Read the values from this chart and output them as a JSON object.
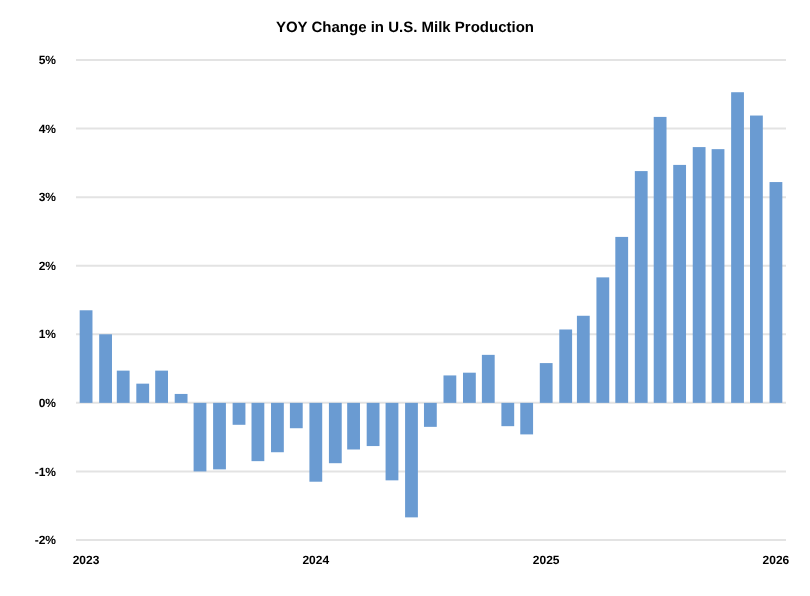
{
  "chart_data": {
    "type": "bar",
    "title": "YOY Change in U.S. Milk Production",
    "x": [
      "2023-01",
      "2023-02",
      "2023-03",
      "2023-04",
      "2023-05",
      "2023-06",
      "2023-07",
      "2023-08",
      "2023-09",
      "2023-10",
      "2023-11",
      "2023-12",
      "2024-01",
      "2024-02",
      "2024-03",
      "2024-04",
      "2024-05",
      "2024-06",
      "2024-07",
      "2024-08",
      "2024-09",
      "2024-10",
      "2024-11",
      "2024-12",
      "2025-01",
      "2025-02",
      "2025-03",
      "2025-04",
      "2025-05",
      "2025-06",
      "2025-07",
      "2025-08",
      "2025-09",
      "2025-10",
      "2025-11",
      "2025-12",
      "2026-01"
    ],
    "values": [
      1.35,
      1.0,
      0.47,
      0.28,
      0.47,
      0.13,
      -1.0,
      -0.97,
      -0.32,
      -0.85,
      -0.72,
      -0.37,
      -1.15,
      -0.88,
      -0.68,
      -0.63,
      -1.13,
      -1.67,
      -0.35,
      0.4,
      0.44,
      0.7,
      -0.34,
      -0.46,
      0.58,
      1.07,
      1.27,
      1.83,
      2.42,
      3.38,
      4.17,
      3.47,
      3.73,
      3.7,
      4.53,
      4.19,
      3.22
    ],
    "color": "#6a9bd2",
    "xlim": [
      "2022-12-16",
      "2026-01-17"
    ],
    "xticks": [
      {
        "value": "2023",
        "label": "2023"
      },
      {
        "value": "2024",
        "label": "2024"
      },
      {
        "value": "2025",
        "label": "2025"
      },
      {
        "value": "2026",
        "label": "2026"
      }
    ],
    "ylim": [
      -2,
      5
    ],
    "yticks": [
      {
        "value": -2,
        "label": "-2%"
      },
      {
        "value": -1,
        "label": "-1%"
      },
      {
        "value": 0,
        "label": "0%"
      },
      {
        "value": 1,
        "label": "1%"
      },
      {
        "value": 2,
        "label": "2%"
      },
      {
        "value": 3,
        "label": "3%"
      },
      {
        "value": 4,
        "label": "4%"
      },
      {
        "value": 5,
        "label": "5%"
      }
    ],
    "grid": "y"
  }
}
